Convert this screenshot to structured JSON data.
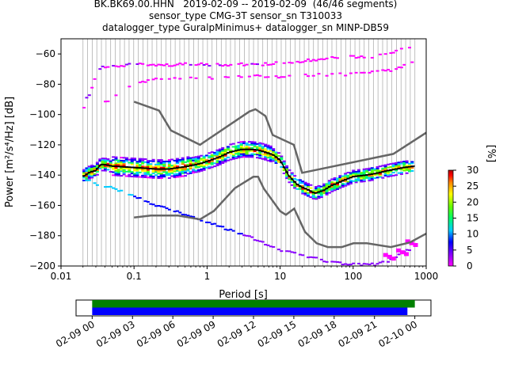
{
  "title": {
    "line1": "BK.BK69.00.HHN   2019-02-09 -- 2019-02-09  (46/46 segments)",
    "line2": "sensor_type CMG-3T sensor_sn T310033",
    "line3": "datalogger_type GuralpMinimus+ datalogger_sn MINP-DB59"
  },
  "chart_data": [
    {
      "type": "heatmap",
      "xscale": "log",
      "xlabel": "Period [s]",
      "ylabel": "Power [m²/s⁴/Hz] [dB]",
      "xlim": [
        0.01,
        1000
      ],
      "ylim": [
        -200,
        -50
      ],
      "x_ticks": [
        0.01,
        0.1,
        1,
        10,
        100,
        1000
      ],
      "x_tick_labels": [
        "0.01",
        "0.1",
        "1",
        "10",
        "100",
        "1000"
      ],
      "y_ticks": [
        -200,
        -180,
        -160,
        -140,
        -120,
        -100,
        -80,
        -60
      ],
      "y_tick_labels": [
        "−200",
        "−180",
        "−160",
        "−140",
        "−120",
        "−100",
        "−80",
        "−60"
      ],
      "grid": "vertical grid lines at logarithmic period bins",
      "colorbar": {
        "label": "[%]",
        "ticks": [
          0,
          5,
          10,
          15,
          20,
          25,
          30
        ],
        "range": [
          0,
          30
        ],
        "colormap": [
          "#ff00ff",
          "#8800ff",
          "#0000ff",
          "#00ccff",
          "#00ff66",
          "#66ff00",
          "#ffff00",
          "#ff8800",
          "#ff0000",
          "#aa0000"
        ]
      },
      "noise_model_high": {
        "x": [
          0.1,
          0.22,
          0.32,
          0.8,
          3.8,
          4.6,
          6.3,
          7.9,
          15.4,
          20,
          354.8,
          1000
        ],
        "y": [
          -91.5,
          -97.4,
          -110.5,
          -120,
          -98,
          -96.5,
          -101,
          -113.5,
          -120,
          -138.5,
          -126,
          -112
        ]
      },
      "noise_model_low": {
        "x": [
          0.1,
          0.17,
          0.4,
          0.8,
          1.24,
          2.4,
          4.3,
          5,
          6,
          10,
          12,
          15.6,
          21.9,
          31.6,
          45,
          70,
          101,
          154,
          328,
          600,
          1000
        ],
        "y": [
          -168,
          -166.7,
          -166.7,
          -169.2,
          -163.7,
          -148.6,
          -141.1,
          -141.1,
          -149,
          -163.8,
          -166.2,
          -162.1,
          -177.5,
          -185,
          -187.5,
          -187.5,
          -185,
          -185,
          -187.5,
          -184.4,
          -178.6
        ]
      },
      "mode_curve": {
        "x": [
          0.02,
          0.025,
          0.03,
          0.035,
          0.04,
          0.05,
          0.07,
          0.1,
          0.15,
          0.2,
          0.3,
          0.5,
          0.8,
          1,
          1.5,
          2,
          3,
          4,
          5,
          6,
          8,
          10,
          13,
          17,
          20,
          25,
          30,
          40,
          50,
          70,
          100,
          150,
          200,
          300,
          500,
          700
        ],
        "y": [
          -141,
          -138,
          -137,
          -133,
          -133,
          -134,
          -134.5,
          -135,
          -135.5,
          -136,
          -136,
          -134.5,
          -132.5,
          -131,
          -128,
          -125,
          -123,
          -123,
          -123.5,
          -124.5,
          -126.5,
          -130,
          -140,
          -146,
          -148,
          -150,
          -152,
          -150,
          -147,
          -144,
          -141,
          -140,
          -139,
          -137,
          -135,
          -134
        ]
      },
      "high_tail_curve": {
        "x": [
          0.019,
          0.02,
          0.022,
          0.025,
          0.03,
          0.04,
          0.06,
          0.1,
          0.2,
          0.5,
          1,
          2,
          5,
          10,
          20,
          50,
          100,
          200,
          300,
          400,
          500,
          700
        ],
        "y": [
          -116,
          -97,
          -90,
          -86,
          -73,
          -68,
          -67.5,
          -67,
          -67,
          -67,
          -67,
          -67,
          -67,
          -66,
          -64.5,
          -63,
          -62,
          -61.5,
          -59.5,
          -58,
          -56,
          -55
        ]
      },
      "upper_band_curve": {
        "x": [
          0.03,
          0.05,
          0.07,
          0.1,
          0.2,
          0.5,
          1,
          2,
          5,
          10,
          20,
          50,
          100,
          200,
          400,
          700
        ],
        "y": [
          -92,
          -90,
          -85,
          -80,
          -76.5,
          -76,
          -76,
          -75.5,
          -75,
          -75,
          -74,
          -74,
          -73,
          -72,
          -70,
          -64
        ]
      },
      "low_tail_curve": {
        "x": [
          0.02,
          0.03,
          0.05,
          0.07,
          0.1,
          0.2,
          0.5,
          1,
          2,
          5,
          10,
          20,
          50,
          100,
          200,
          300,
          400,
          500,
          700
        ],
        "y": [
          -142,
          -146,
          -148.5,
          -151,
          -154,
          -160,
          -166,
          -171,
          -176,
          -183,
          -189.5,
          -193,
          -197.5,
          -199,
          -199,
          -197,
          -194,
          -190,
          -188
        ]
      }
    },
    {
      "type": "timeline",
      "x_tick_labels": [
        "02-09 00",
        "02-09 03",
        "02-09 06",
        "02-09 09",
        "02-09 12",
        "02-09 15",
        "02-09 18",
        "02-09 21",
        "02-10 00"
      ],
      "x_range_hours": [
        -1.2,
        25.2
      ],
      "series": [
        {
          "color": "#008000",
          "start_hour": 0,
          "end_hour": 24.0
        },
        {
          "color": "#0000ff",
          "start_hour": 0,
          "end_hour": 23.45
        }
      ]
    }
  ]
}
